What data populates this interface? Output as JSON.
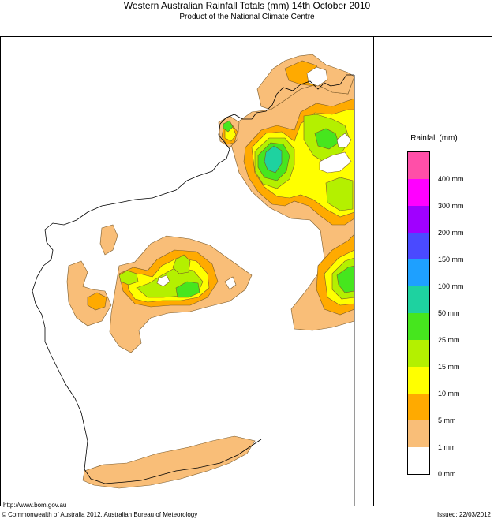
{
  "header": {
    "title": "Western Australian Rainfall Totals (mm) 14th October 2010",
    "subtitle": "Product of the National Climate Centre"
  },
  "legend": {
    "title": "Rainfall (mm)",
    "classes": [
      {
        "label": "400 mm",
        "color": "#ff4fa8"
      },
      {
        "label": "300 mm",
        "color": "#ff00ff"
      },
      {
        "label": "200 mm",
        "color": "#a000ff"
      },
      {
        "label": "150 mm",
        "color": "#4a4aff"
      },
      {
        "label": "100 mm",
        "color": "#1ea0ff"
      },
      {
        "label": "50 mm",
        "color": "#1ed2a0"
      },
      {
        "label": "25 mm",
        "color": "#46e61e"
      },
      {
        "label": "15 mm",
        "color": "#b4f000"
      },
      {
        "label": "10 mm",
        "color": "#ffff00"
      },
      {
        "label": "5 mm",
        "color": "#ffaa00"
      },
      {
        "label": "1 mm",
        "color": "#f9be78"
      },
      {
        "label": "0 mm",
        "color": "#ffffff"
      }
    ]
  },
  "footer": {
    "url": "http://www.bom.gov.au",
    "copyright": "© Commonwealth of Australia 2012, Australian Bureau of Meteorology",
    "issued": "Issued: 22/03/2012"
  }
}
